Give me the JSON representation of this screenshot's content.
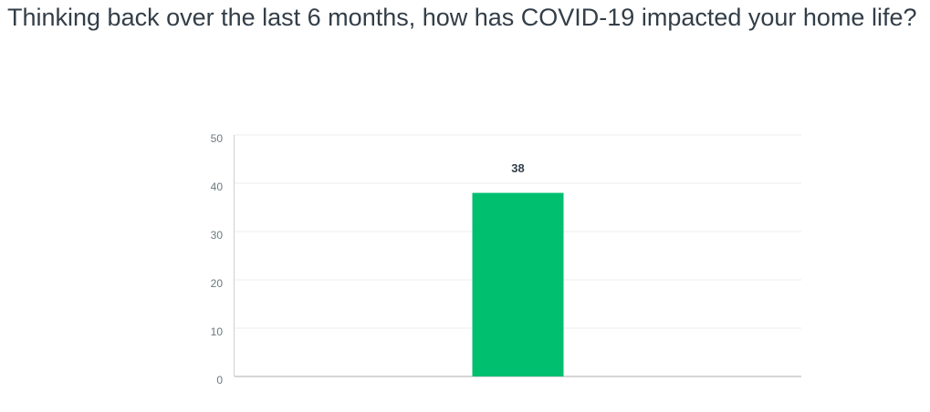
{
  "chart_data": {
    "type": "bar",
    "title": "Thinking back over the last 6 months, how has COVID-19 impacted your home life?",
    "categories": [
      null
    ],
    "values": [
      38
    ],
    "color": "#00bf6f",
    "ylim": [
      0,
      50
    ],
    "yticks": [
      0,
      10,
      20,
      30,
      40,
      50
    ],
    "grid": true
  }
}
